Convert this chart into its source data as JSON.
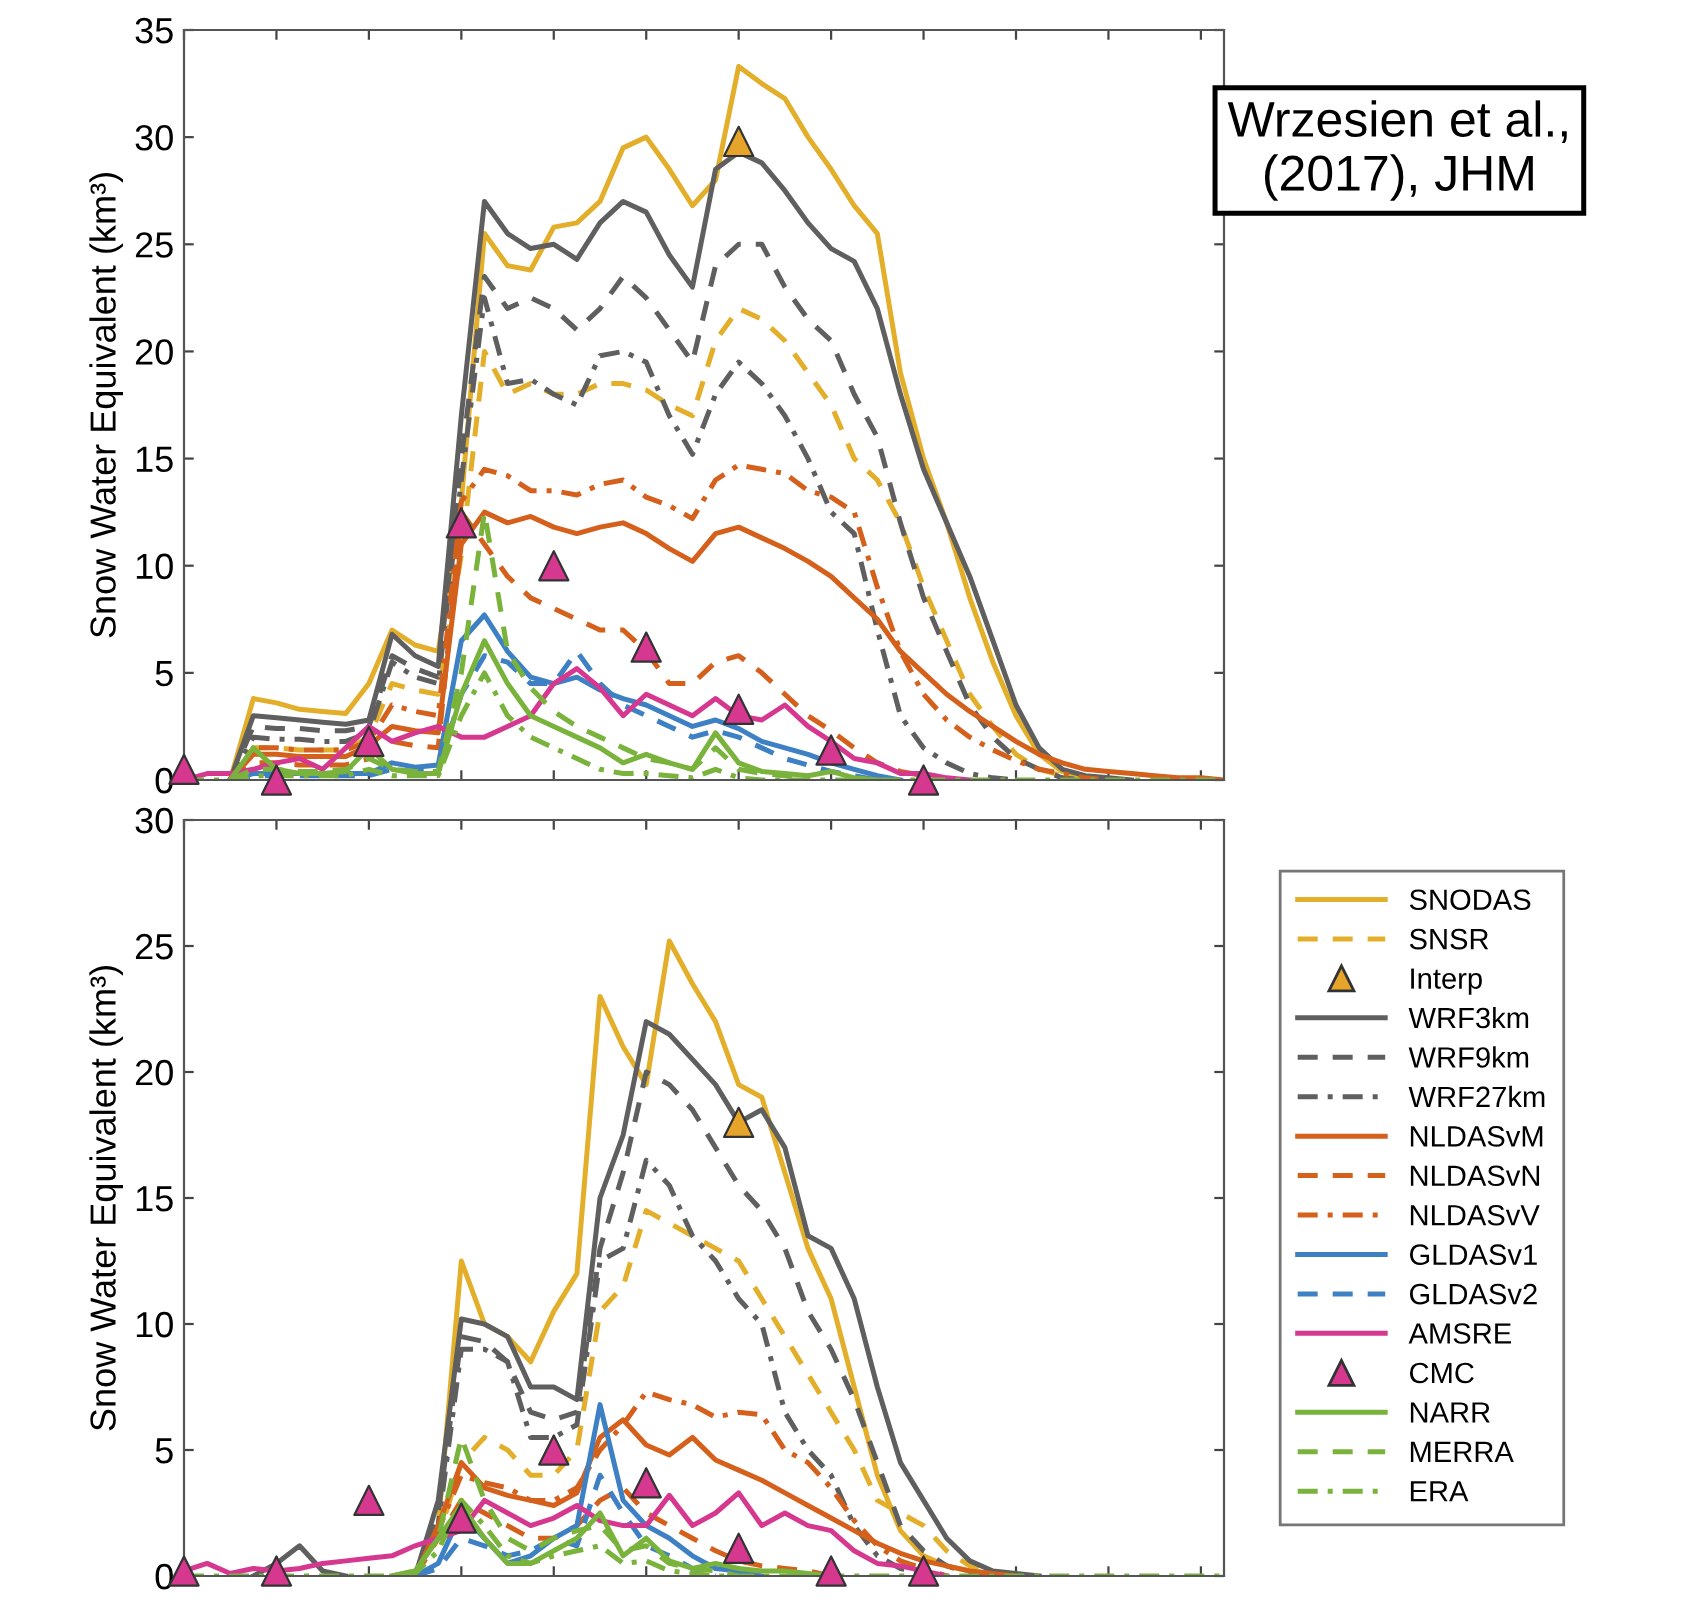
{
  "chart_data": [
    {
      "type": "line",
      "ylabel": "Snow Water Equivalent (km³)",
      "ylim": [
        0,
        35
      ],
      "yticks": [
        0,
        5,
        10,
        15,
        20,
        25,
        30,
        35
      ],
      "tick_labels": "y",
      "grid": false,
      "legend": false,
      "annotations": [
        "Wrzesien et al.,\n(2017), JHM"
      ],
      "categories": [
        null,
        null,
        null,
        null,
        null,
        null,
        null,
        null,
        null,
        null,
        null,
        null,
        null,
        null,
        null,
        null,
        null,
        null,
        null,
        null,
        null,
        null,
        null,
        null,
        null,
        null,
        null,
        null,
        null,
        null,
        null,
        null,
        null,
        null,
        null,
        null,
        null,
        null,
        null,
        null,
        null,
        null,
        null,
        null,
        null,
        null
      ],
      "series": [
        {
          "line_style": "solid",
          "color": "#e3ae2a",
          "values": [
            null,
            null,
            0,
            3.8,
            3.6,
            3.3,
            3.2,
            3.1,
            4.5,
            7,
            6.3,
            6,
            13,
            25.5,
            24,
            23.8,
            25.8,
            26,
            27,
            29.5,
            30,
            28.5,
            26.8,
            28,
            33.3,
            32.5,
            31.8,
            30,
            28.5,
            26.8,
            25.5,
            19,
            15,
            12,
            8.5,
            5.5,
            3,
            1.2,
            0.4,
            0.1,
            0,
            null,
            null,
            null,
            null,
            null
          ]
        },
        {
          "line_style": "dashed",
          "color": "#e3ae2a",
          "values": [
            null,
            null,
            0,
            1.5,
            1.5,
            1.4,
            1.4,
            1.4,
            2,
            4.5,
            4.2,
            4,
            10.5,
            20,
            18,
            18.5,
            18,
            18,
            18.5,
            18.5,
            18.2,
            17.5,
            17,
            20.5,
            22,
            21.5,
            20.5,
            19,
            17.5,
            15,
            14,
            12,
            9,
            6.5,
            4,
            2.5,
            1.2,
            0.5,
            0.2,
            0,
            null,
            null,
            null,
            null,
            null,
            null
          ]
        },
        {
          "type": "scatter",
          "marker": "triangle",
          "color": "#e6a52a",
          "values": [
            null,
            null,
            null,
            null,
            null,
            null,
            null,
            null,
            null,
            null,
            null,
            null,
            null,
            null,
            null,
            null,
            null,
            null,
            null,
            null,
            null,
            null,
            null,
            null,
            29.8,
            null,
            null,
            null,
            null,
            null,
            null,
            null,
            null,
            null,
            null,
            null,
            null,
            null,
            null,
            null,
            null,
            null,
            null,
            null,
            null,
            null
          ]
        },
        {
          "line_style": "solid",
          "color": "#5f5f5f",
          "values": [
            null,
            null,
            0,
            3,
            2.9,
            2.8,
            2.7,
            2.6,
            2.8,
            6.8,
            5.8,
            5.3,
            17,
            27,
            25.5,
            24.8,
            25,
            24.3,
            26,
            27,
            26.5,
            24.5,
            23,
            28.5,
            29.3,
            28.8,
            27.5,
            26,
            24.8,
            24.2,
            22,
            18,
            14.5,
            12,
            9.5,
            6.5,
            3.5,
            1.5,
            0.5,
            0.2,
            0.1,
            0,
            null,
            null,
            null,
            null
          ]
        },
        {
          "line_style": "dashed",
          "color": "#5f5f5f",
          "values": [
            null,
            null,
            0,
            2.5,
            2.4,
            2.4,
            2.3,
            2.3,
            2.5,
            5.8,
            5.2,
            4.8,
            15,
            23.5,
            22,
            22.5,
            22,
            21,
            22,
            23.5,
            22.5,
            21,
            19.5,
            24,
            25,
            25,
            23,
            21.5,
            20.5,
            18,
            16,
            12,
            8.5,
            6,
            3.5,
            2,
            1,
            0.5,
            0.1,
            0,
            null,
            null,
            null,
            null,
            null,
            null
          ]
        },
        {
          "line_style": "dashdot",
          "color": "#5f5f5f",
          "values": [
            null,
            null,
            0,
            2,
            1.9,
            1.9,
            1.8,
            1.8,
            2.2,
            5.5,
            4.8,
            4.5,
            14,
            22.5,
            18.5,
            18.7,
            18,
            17.5,
            19.8,
            20,
            19.5,
            17,
            15.2,
            18,
            19.5,
            18.5,
            17,
            15,
            12.5,
            11.5,
            7,
            3,
            1.5,
            0.8,
            0.3,
            0.1,
            0,
            null,
            null,
            null,
            null,
            null,
            null,
            null,
            null,
            null
          ]
        },
        {
          "line_style": "solid",
          "color": "#d4601c",
          "values": [
            null,
            null,
            0,
            1.2,
            1.2,
            1.1,
            1.1,
            1.1,
            1.6,
            2.5,
            2.3,
            2.2,
            11,
            12.5,
            12,
            12.3,
            11.8,
            11.5,
            11.8,
            12,
            11.5,
            10.8,
            10.2,
            11.5,
            11.8,
            11.3,
            10.8,
            10.2,
            9.5,
            8.5,
            7.5,
            6,
            5,
            4,
            3.2,
            2.5,
            1.8,
            1.2,
            0.8,
            0.5,
            0.4,
            0.3,
            0.2,
            0.1,
            0.1,
            0
          ]
        },
        {
          "line_style": "dashed",
          "color": "#d4601c",
          "values": [
            null,
            null,
            0,
            0.8,
            0.8,
            0.7,
            0.7,
            0.7,
            1,
            1.8,
            1.6,
            1.5,
            12.5,
            11,
            9.5,
            8.5,
            8,
            7.5,
            7,
            7,
            6,
            4.5,
            4.5,
            5.5,
            5.8,
            5,
            4,
            3,
            2.3,
            1.5,
            0.8,
            0.4,
            0.2,
            0,
            null,
            null,
            null,
            null,
            null,
            null,
            null,
            null,
            null,
            null,
            null,
            null
          ]
        },
        {
          "line_style": "dashdot",
          "color": "#d4601c",
          "values": [
            null,
            null,
            0,
            1.5,
            1.5,
            1.4,
            1.4,
            1.4,
            1.8,
            3.5,
            3.2,
            3,
            13,
            14.5,
            14.2,
            13.5,
            13.5,
            13.3,
            13.8,
            14,
            13.2,
            12.8,
            12.2,
            14,
            14.7,
            14.5,
            14.3,
            13.5,
            13.2,
            12.5,
            9,
            6,
            4,
            2.8,
            2,
            1.4,
            0.9,
            0.5,
            0.3,
            0.1,
            0,
            null,
            null,
            null,
            null,
            null
          ]
        },
        {
          "line_style": "solid",
          "color": "#3d80c4",
          "values": [
            null,
            null,
            0,
            0.3,
            0.3,
            0.3,
            0.3,
            0.3,
            0.3,
            0.8,
            0.6,
            0.7,
            6.5,
            7.7,
            6,
            4.8,
            4.5,
            4.8,
            4.2,
            3.8,
            3.5,
            3,
            2.5,
            2.8,
            2.4,
            1.8,
            1.5,
            1.2,
            0.8,
            0.5,
            0.2,
            0,
            null,
            null,
            null,
            null,
            null,
            null,
            null,
            null,
            null,
            null,
            null,
            null,
            null,
            null
          ]
        },
        {
          "line_style": "dashed",
          "color": "#3d80c4",
          "values": [
            null,
            null,
            0,
            0.2,
            0.2,
            0.2,
            0.2,
            0.2,
            0.2,
            0.5,
            0.4,
            0.5,
            4,
            5.8,
            5.5,
            4.5,
            4.5,
            6,
            4.5,
            3.5,
            3,
            2.5,
            2,
            2.3,
            2,
            1.5,
            1,
            0.7,
            0.4,
            0.2,
            0,
            null,
            null,
            null,
            null,
            null,
            null,
            null,
            null,
            null,
            null,
            null,
            null,
            null,
            null,
            null
          ]
        },
        {
          "line_style": "solid",
          "color": "#d6388f",
          "values": [
            0,
            0.3,
            0.3,
            0.5,
            0.8,
            1,
            0.5,
            1.5,
            2.5,
            1.8,
            2.2,
            2.5,
            2,
            2,
            2.5,
            3,
            4.5,
            5.2,
            4.3,
            3,
            4,
            3.5,
            3,
            3.8,
            3,
            2.8,
            3.5,
            2.5,
            1.8,
            1,
            0.8,
            0.3,
            0.3,
            0.1,
            0,
            null,
            null,
            null,
            null,
            null,
            null,
            null,
            null,
            null,
            null,
            null
          ]
        },
        {
          "type": "scatter",
          "marker": "triangle",
          "color": "#d6388f",
          "values": [
            0.5,
            null,
            null,
            null,
            0,
            null,
            null,
            null,
            1.8,
            null,
            null,
            null,
            12,
            null,
            null,
            null,
            10,
            null,
            null,
            null,
            6.2,
            null,
            null,
            null,
            3.3,
            null,
            null,
            null,
            1.4,
            null,
            null,
            null,
            0,
            null,
            null,
            null,
            null,
            null,
            null,
            null,
            null,
            null,
            null,
            null,
            null,
            null
          ]
        },
        {
          "line_style": "solid",
          "color": "#7ab33c",
          "values": [
            null,
            null,
            0,
            1.5,
            0.5,
            0.3,
            0.3,
            0.4,
            1.5,
            0.5,
            0.3,
            0.3,
            4,
            6.5,
            4.5,
            3,
            2.5,
            2,
            1.5,
            0.8,
            1.2,
            0.8,
            0.5,
            2.2,
            0.8,
            0.4,
            0.3,
            0.2,
            0.4,
            0.1,
            0,
            null,
            null,
            null,
            null,
            null,
            null,
            null,
            null,
            null,
            null,
            null,
            null,
            null,
            null,
            null
          ]
        },
        {
          "line_style": "dashed",
          "color": "#7ab33c",
          "values": [
            null,
            null,
            0,
            0.5,
            0.5,
            0.4,
            0.4,
            0.5,
            1,
            0.5,
            0.4,
            0.4,
            5,
            12.5,
            6,
            4.3,
            3.2,
            2.5,
            2,
            1.5,
            1,
            0.8,
            0.5,
            1.5,
            0.5,
            0.3,
            0.2,
            0,
            null,
            null,
            null,
            null,
            null,
            null,
            null,
            null,
            null,
            null,
            null,
            null,
            null,
            null,
            null,
            null,
            null,
            null
          ]
        },
        {
          "line_style": "dashdot",
          "color": "#7ab33c",
          "values": [
            0,
            0,
            0,
            0.2,
            0.2,
            0.2,
            0.2,
            0.2,
            0.5,
            0.2,
            0.2,
            0.2,
            3,
            5,
            3,
            2,
            1.5,
            1,
            0.5,
            0.3,
            0.3,
            0.2,
            0.1,
            0.5,
            0.1,
            0,
            0,
            0,
            0,
            0,
            0,
            0,
            0,
            0,
            0,
            0,
            0,
            0,
            0,
            0,
            0,
            0,
            0,
            0,
            0,
            0
          ]
        }
      ]
    },
    {
      "type": "line",
      "ylabel": "Snow Water Equivalent (km³)",
      "ylim": [
        0,
        30
      ],
      "yticks": [
        0,
        5,
        10,
        15,
        20,
        25,
        30
      ],
      "tick_labels": "y",
      "grid": false,
      "legend": "right",
      "categories": [
        null,
        null,
        null,
        null,
        null,
        null,
        null,
        null,
        null,
        null,
        null,
        null,
        null,
        null,
        null,
        null,
        null,
        null,
        null,
        null,
        null,
        null,
        null,
        null,
        null,
        null,
        null,
        null,
        null,
        null,
        null,
        null,
        null,
        null,
        null,
        null,
        null,
        null,
        null,
        null,
        null,
        null,
        null,
        null,
        null,
        null
      ],
      "series": [
        {
          "name": "SNODAS",
          "line_style": "solid",
          "color": "#e3ae2a",
          "values": [
            null,
            null,
            null,
            null,
            null,
            null,
            null,
            null,
            null,
            0,
            0.1,
            2,
            12.5,
            10,
            9.5,
            8.5,
            10.5,
            12,
            23,
            21,
            19.5,
            25.2,
            23.5,
            22,
            19.5,
            19,
            16,
            13,
            11,
            7.5,
            4,
            1.8,
            0.8,
            0.4,
            0.2,
            0.1,
            0,
            null,
            null,
            null,
            null,
            null,
            null,
            null,
            null,
            null
          ]
        },
        {
          "name": "SNSR",
          "line_style": "dashed",
          "color": "#e3ae2a",
          "values": [
            null,
            null,
            null,
            null,
            null,
            null,
            null,
            null,
            null,
            null,
            0,
            1.5,
            4.5,
            5.5,
            5,
            4,
            4,
            5,
            10.5,
            11.5,
            14.5,
            14,
            13.5,
            13,
            12.5,
            11,
            9.5,
            8,
            6.5,
            5,
            3,
            2.5,
            2,
            1,
            0.4,
            0.1,
            0,
            null,
            null,
            null,
            null,
            null,
            null,
            null,
            null,
            null
          ]
        },
        {
          "type": "scatter",
          "name": "Interp",
          "marker": "triangle",
          "color": "#e6a52a",
          "values": [
            null,
            null,
            null,
            null,
            null,
            null,
            null,
            null,
            null,
            null,
            null,
            null,
            null,
            null,
            null,
            null,
            null,
            null,
            null,
            null,
            null,
            null,
            null,
            null,
            18,
            null,
            null,
            null,
            null,
            null,
            null,
            null,
            null,
            null,
            null,
            null,
            null,
            null,
            null,
            null,
            null,
            null,
            null,
            null,
            null,
            null
          ]
        },
        {
          "name": "WRF3km",
          "line_style": "solid",
          "color": "#5f5f5f",
          "values": [
            null,
            null,
            null,
            0,
            0.5,
            1.2,
            0.2,
            0,
            null,
            null,
            0,
            3,
            10.2,
            10,
            9.5,
            7.5,
            7.5,
            7,
            15,
            17.5,
            22,
            21.5,
            20.5,
            19.5,
            18,
            18.5,
            17,
            13.5,
            13,
            11,
            7.5,
            4.5,
            3,
            1.5,
            0.6,
            0.2,
            0.1,
            0,
            null,
            null,
            null,
            null,
            null,
            null,
            null,
            null
          ]
        },
        {
          "name": "WRF9km",
          "line_style": "dashed",
          "color": "#5f5f5f",
          "values": [
            null,
            null,
            null,
            null,
            null,
            null,
            null,
            null,
            null,
            null,
            0,
            2.5,
            9.5,
            9.3,
            8.5,
            6.5,
            6.2,
            6.5,
            13,
            16,
            20,
            19.5,
            18.5,
            17,
            15.5,
            14.5,
            13,
            10.5,
            9,
            7,
            4.5,
            2,
            1,
            0.4,
            0.1,
            0,
            null,
            null,
            null,
            null,
            null,
            null,
            null,
            null,
            null,
            null
          ]
        },
        {
          "name": "WRF27km",
          "line_style": "dashdot",
          "color": "#5f5f5f",
          "values": [
            null,
            null,
            null,
            null,
            null,
            null,
            null,
            null,
            null,
            null,
            0,
            2,
            9,
            9,
            8.5,
            5.5,
            5.5,
            6,
            12.5,
            13,
            16.5,
            15.5,
            13.5,
            12.5,
            11,
            10,
            6.5,
            5,
            4,
            2,
            0.8,
            0.3,
            0.1,
            0,
            null,
            null,
            null,
            null,
            null,
            null,
            null,
            null,
            null,
            null,
            null,
            null
          ]
        },
        {
          "name": "NLDASvM",
          "line_style": "solid",
          "color": "#d4601c",
          "values": [
            null,
            null,
            null,
            null,
            null,
            null,
            null,
            null,
            null,
            null,
            0,
            2,
            4.5,
            3.5,
            3.2,
            3,
            2.8,
            3.3,
            5.5,
            6.2,
            5.2,
            4.8,
            5.5,
            4.6,
            4.2,
            3.8,
            3.3,
            2.8,
            2.3,
            1.8,
            1.3,
            0.9,
            0.6,
            0.4,
            0.2,
            0.1,
            0,
            null,
            null,
            null,
            null,
            null,
            null,
            null,
            null,
            null
          ]
        },
        {
          "name": "NLDASvN",
          "line_style": "dashed",
          "color": "#d4601c",
          "values": [
            null,
            null,
            null,
            null,
            null,
            null,
            null,
            null,
            null,
            null,
            0,
            1.5,
            3,
            2.5,
            2,
            1.5,
            1.5,
            2,
            3,
            3.5,
            2.5,
            2,
            1.5,
            1,
            0.6,
            0.4,
            0.3,
            0.2,
            0,
            null,
            null,
            null,
            null,
            null,
            null,
            null,
            null,
            null,
            null,
            null,
            null,
            null,
            null,
            null,
            null,
            null
          ]
        },
        {
          "name": "NLDASvV",
          "line_style": "dashdot",
          "color": "#d4601c",
          "values": [
            null,
            null,
            null,
            null,
            null,
            null,
            null,
            null,
            null,
            null,
            0,
            1.8,
            4,
            3.7,
            3.5,
            3,
            3,
            3.5,
            5,
            6,
            7.3,
            7,
            6.8,
            6.3,
            6.5,
            6.4,
            5,
            4.5,
            3.5,
            2.2,
            1.2,
            0.6,
            0.3,
            0,
            null,
            null,
            null,
            null,
            null,
            null,
            null,
            null,
            null,
            null,
            null,
            null
          ]
        },
        {
          "name": "GLDASv1",
          "line_style": "solid",
          "color": "#3d80c4",
          "values": [
            null,
            null,
            null,
            null,
            null,
            null,
            null,
            null,
            null,
            null,
            0,
            0.5,
            2.5,
            1.5,
            0.5,
            0.8,
            1.5,
            2,
            6.8,
            3,
            2,
            1.5,
            0.8,
            0.3,
            0.2,
            0,
            null,
            null,
            null,
            null,
            null,
            null,
            null,
            null,
            null,
            null,
            null,
            null,
            null,
            null,
            null,
            null,
            null,
            null,
            null,
            null
          ]
        },
        {
          "name": "GLDASv2",
          "line_style": "dashed",
          "color": "#3d80c4",
          "values": [
            null,
            null,
            null,
            null,
            null,
            null,
            null,
            null,
            null,
            null,
            0,
            0.3,
            1.5,
            1.2,
            0.8,
            1,
            1.5,
            1.2,
            4,
            2.5,
            1.2,
            0.8,
            0.3,
            0,
            null,
            null,
            null,
            null,
            null,
            null,
            null,
            null,
            null,
            null,
            null,
            null,
            null,
            null,
            null,
            null,
            null,
            null,
            null,
            null,
            null,
            null
          ]
        },
        {
          "name": "AMSRE",
          "line_style": "solid",
          "color": "#d6388f",
          "values": [
            0.2,
            0.5,
            0.1,
            0.3,
            0.2,
            0.3,
            0.5,
            0.6,
            0.7,
            0.8,
            1.2,
            1.5,
            1.8,
            3,
            2.5,
            2,
            2.3,
            2.8,
            2.2,
            2,
            2,
            3.2,
            2,
            2.5,
            3.3,
            2,
            2.5,
            2,
            1.8,
            1,
            0.5,
            0.4,
            0.2,
            0,
            null,
            null,
            null,
            null,
            null,
            null,
            null,
            null,
            null,
            null,
            null,
            null
          ]
        },
        {
          "type": "scatter",
          "name": "CMC",
          "marker": "triangle",
          "color": "#d6388f",
          "values": [
            0.2,
            null,
            null,
            null,
            0.2,
            null,
            null,
            null,
            3,
            null,
            null,
            null,
            2.3,
            null,
            null,
            null,
            5,
            null,
            null,
            null,
            3.7,
            null,
            null,
            null,
            1.1,
            null,
            null,
            null,
            0.2,
            null,
            null,
            null,
            0.2,
            null,
            null,
            null,
            null,
            null,
            null,
            null,
            null,
            null,
            null,
            null,
            null,
            null
          ]
        },
        {
          "name": "NARR",
          "line_style": "solid",
          "color": "#7ab33c",
          "values": [
            null,
            null,
            null,
            null,
            null,
            null,
            null,
            null,
            null,
            0,
            0.2,
            1.5,
            2.8,
            1.5,
            0.5,
            0.5,
            1,
            1.5,
            2.5,
            0.8,
            1.5,
            0.6,
            0.3,
            0.5,
            0.3,
            0.2,
            0.2,
            0.1,
            0,
            null,
            null,
            null,
            null,
            null,
            null,
            null,
            null,
            null,
            null,
            null,
            null,
            null,
            null,
            null,
            null,
            null
          ]
        },
        {
          "name": "MERRA",
          "line_style": "dashed",
          "color": "#7ab33c",
          "values": [
            null,
            null,
            null,
            null,
            null,
            null,
            null,
            null,
            null,
            0,
            0.2,
            1.5,
            5.5,
            3,
            1.5,
            1,
            1.5,
            1.8,
            2,
            1,
            1.2,
            0.5,
            0.3,
            0.2,
            0,
            null,
            null,
            null,
            null,
            null,
            null,
            null,
            null,
            null,
            null,
            null,
            null,
            null,
            null,
            null,
            null,
            null,
            null,
            null,
            null,
            null
          ]
        },
        {
          "name": "ERA",
          "line_style": "dashdot",
          "color": "#7ab33c",
          "values": [
            0,
            0,
            0,
            0,
            0,
            0,
            0,
            0,
            0,
            0,
            0.1,
            1,
            3,
            2,
            0.8,
            0.5,
            0.8,
            1,
            1.2,
            0.5,
            0.6,
            0.2,
            0.1,
            0,
            0,
            0,
            0,
            0,
            0,
            0,
            0,
            0,
            0,
            0,
            0,
            0,
            0,
            0,
            0,
            0,
            0,
            0,
            0,
            0,
            0,
            0
          ]
        }
      ]
    }
  ]
}
